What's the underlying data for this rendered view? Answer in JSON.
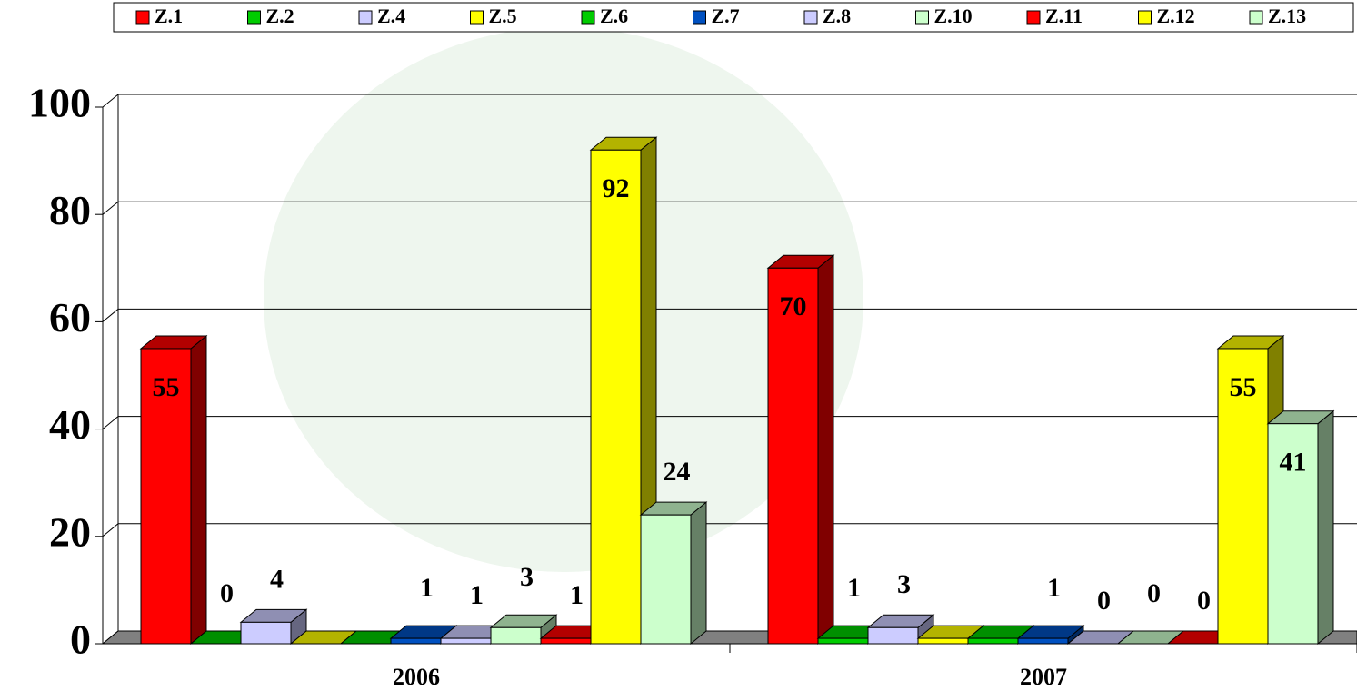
{
  "chart_data": {
    "type": "bar3d",
    "categories": [
      "2006",
      "2007"
    ],
    "series": [
      {
        "name": "Z.1",
        "color": "#ff0000",
        "values": [
          55,
          70
        ],
        "value_labels": [
          "55",
          "70"
        ]
      },
      {
        "name": "Z.2",
        "color": "#00cc00",
        "values": [
          0,
          1
        ],
        "value_labels": [
          "0",
          "1"
        ]
      },
      {
        "name": "Z.4",
        "color": "#ccccff",
        "values": [
          4,
          3
        ],
        "value_labels": [
          "4",
          "3"
        ]
      },
      {
        "name": "Z.5",
        "color": "#ffff00",
        "values": [
          0,
          1
        ],
        "value_labels": [
          null,
          null
        ]
      },
      {
        "name": "Z.6",
        "color": "#00cc00",
        "values": [
          0,
          1
        ],
        "value_labels": [
          null,
          null
        ]
      },
      {
        "name": "Z.7",
        "color": "#0050c0",
        "values": [
          1,
          1
        ],
        "value_labels": [
          "1",
          "1"
        ]
      },
      {
        "name": "Z.8",
        "color": "#ccccff",
        "values": [
          1,
          0
        ],
        "value_labels": [
          "1",
          "0"
        ]
      },
      {
        "name": "Z.10",
        "color": "#ccffcc",
        "values": [
          3,
          0
        ],
        "value_labels": [
          "3",
          "0"
        ]
      },
      {
        "name": "Z.11",
        "color": "#ff0000",
        "values": [
          1,
          0
        ],
        "value_labels": [
          "1",
          "0"
        ]
      },
      {
        "name": "Z.12",
        "color": "#ffff00",
        "values": [
          92,
          55
        ],
        "value_labels": [
          "92",
          "55"
        ]
      },
      {
        "name": "Z.13",
        "color": "#ccffcc",
        "values": [
          24,
          41
        ],
        "value_labels": [
          "24",
          "41"
        ]
      }
    ],
    "ylim": [
      0,
      100
    ],
    "yticks": [
      0,
      20,
      40,
      60,
      80,
      100
    ],
    "grid": true,
    "legend": "top"
  }
}
